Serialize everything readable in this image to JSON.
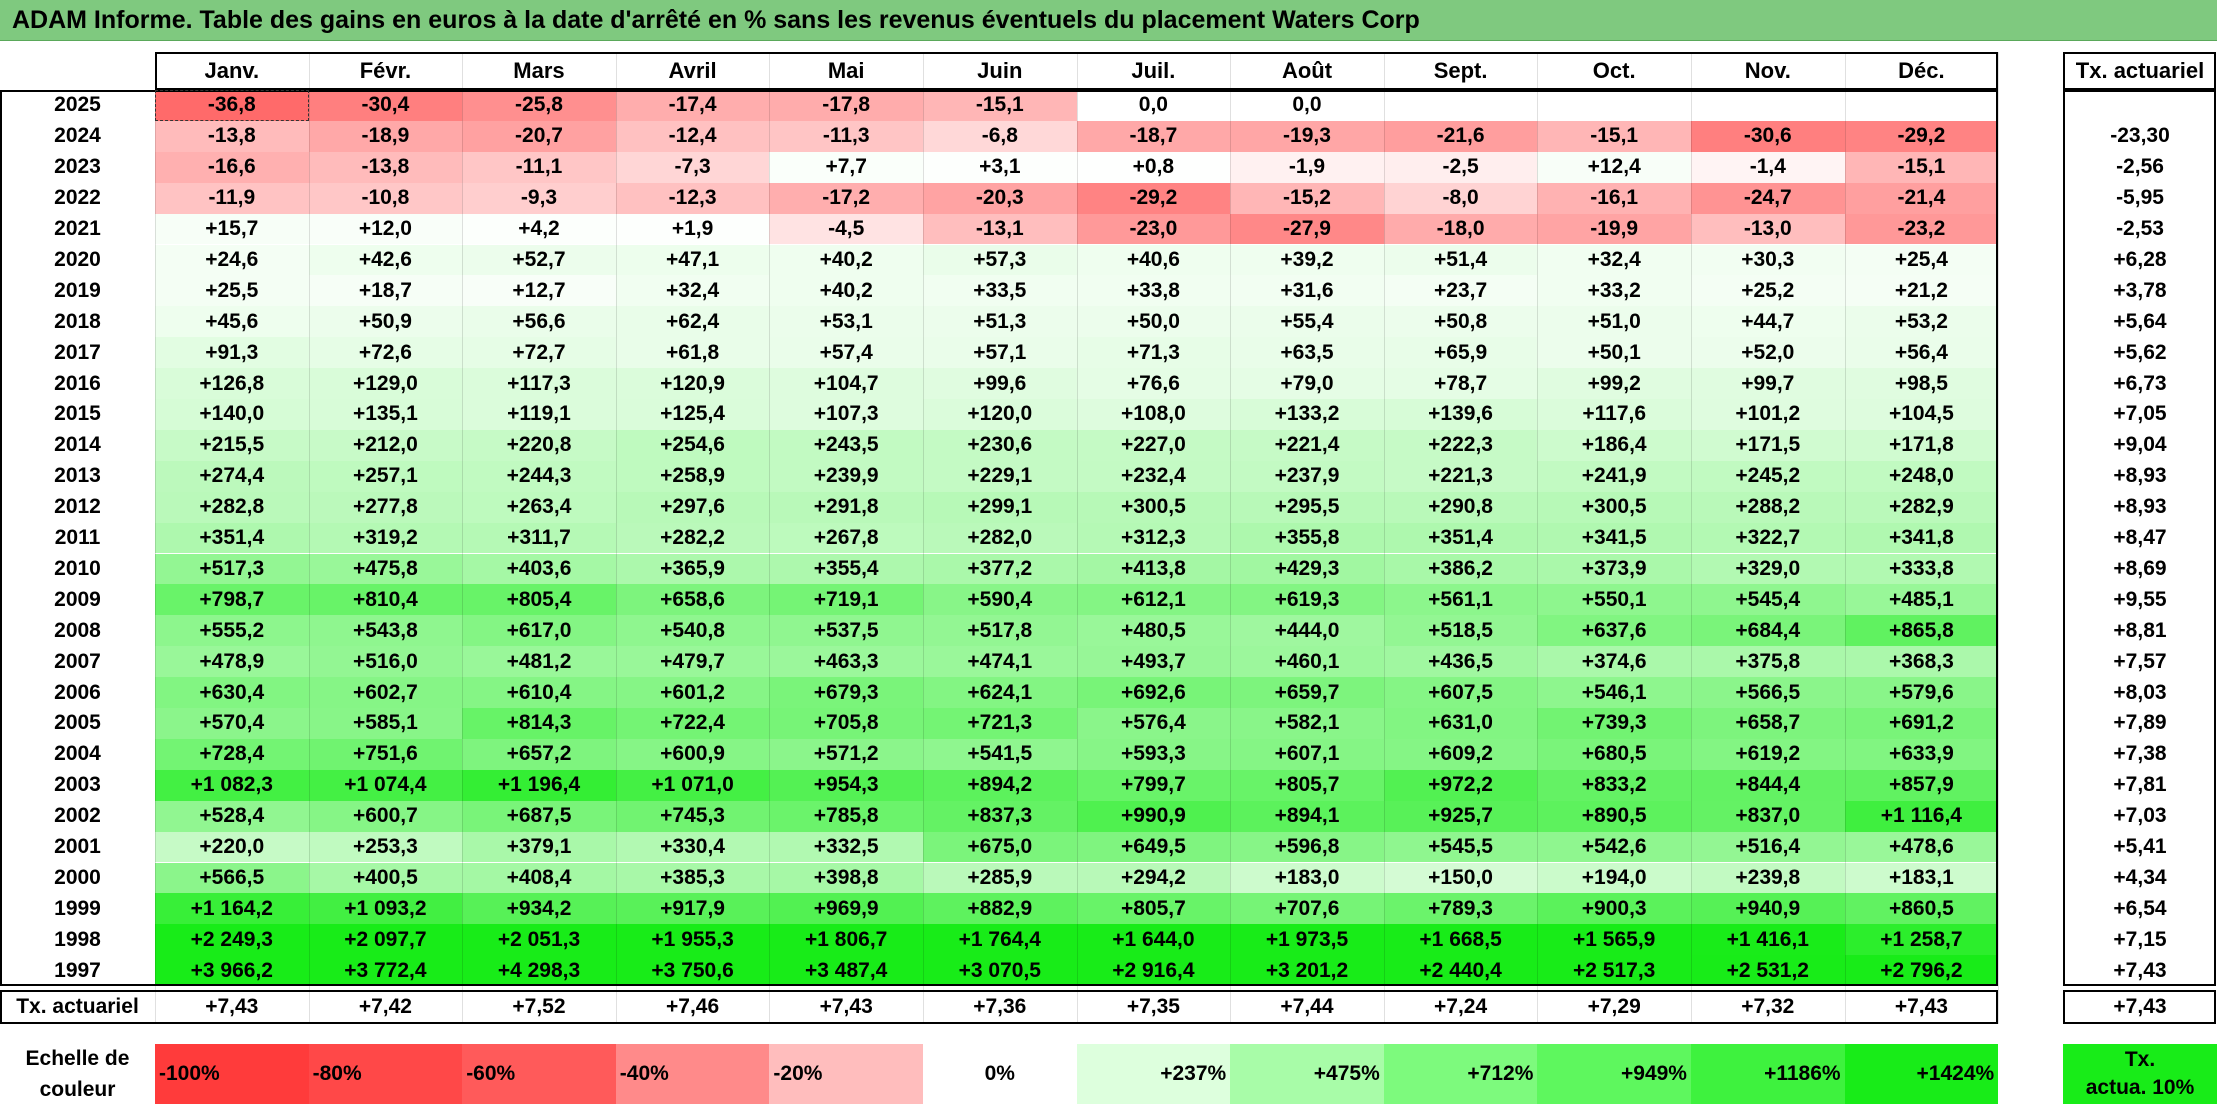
{
  "title": "ADAM Informe. Table des gains en euros à la date d'arrêté en % sans les revenus éventuels du placement Waters Corp",
  "months": [
    "Janv.",
    "Févr.",
    "Mars",
    "Avril",
    "Mai",
    "Juin",
    "Juil.",
    "Août",
    "Sept.",
    "Oct.",
    "Nov.",
    "Déc."
  ],
  "rate_header": "Tx. actuariel",
  "rows": [
    {
      "year": "2025",
      "values": [
        "-36,8",
        "-30,4",
        "-25,8",
        "-17,4",
        "-17,8",
        "-15,1",
        "0,0",
        "0,0",
        "",
        "",
        "",
        ""
      ],
      "rate": ""
    },
    {
      "year": "2024",
      "values": [
        "-13,8",
        "-18,9",
        "-20,7",
        "-12,4",
        "-11,3",
        "-6,8",
        "-18,7",
        "-19,3",
        "-21,6",
        "-15,1",
        "-30,6",
        "-29,2"
      ],
      "rate": "-23,30"
    },
    {
      "year": "2023",
      "values": [
        "-16,6",
        "-13,8",
        "-11,1",
        "-7,3",
        "+7,7",
        "+3,1",
        "+0,8",
        "-1,9",
        "-2,5",
        "+12,4",
        "-1,4",
        "-15,1"
      ],
      "rate": "-2,56"
    },
    {
      "year": "2022",
      "values": [
        "-11,9",
        "-10,8",
        "-9,3",
        "-12,3",
        "-17,2",
        "-20,3",
        "-29,2",
        "-15,2",
        "-8,0",
        "-16,1",
        "-24,7",
        "-21,4"
      ],
      "rate": "-5,95"
    },
    {
      "year": "2021",
      "values": [
        "+15,7",
        "+12,0",
        "+4,2",
        "+1,9",
        "-4,5",
        "-13,1",
        "-23,0",
        "-27,9",
        "-18,0",
        "-19,9",
        "-13,0",
        "-23,2"
      ],
      "rate": "-2,53"
    },
    {
      "year": "2020",
      "values": [
        "+24,6",
        "+42,6",
        "+52,7",
        "+47,1",
        "+40,2",
        "+57,3",
        "+40,6",
        "+39,2",
        "+51,4",
        "+32,4",
        "+30,3",
        "+25,4"
      ],
      "rate": "+6,28"
    },
    {
      "year": "2019",
      "values": [
        "+25,5",
        "+18,7",
        "+12,7",
        "+32,4",
        "+40,2",
        "+33,5",
        "+33,8",
        "+31,6",
        "+23,7",
        "+33,2",
        "+25,2",
        "+21,2"
      ],
      "rate": "+3,78"
    },
    {
      "year": "2018",
      "values": [
        "+45,6",
        "+50,9",
        "+56,6",
        "+62,4",
        "+53,1",
        "+51,3",
        "+50,0",
        "+55,4",
        "+50,8",
        "+51,0",
        "+44,7",
        "+53,2"
      ],
      "rate": "+5,64"
    },
    {
      "year": "2017",
      "values": [
        "+91,3",
        "+72,6",
        "+72,7",
        "+61,8",
        "+57,4",
        "+57,1",
        "+71,3",
        "+63,5",
        "+65,9",
        "+50,1",
        "+52,0",
        "+56,4"
      ],
      "rate": "+5,62"
    },
    {
      "year": "2016",
      "values": [
        "+126,8",
        "+129,0",
        "+117,3",
        "+120,9",
        "+104,7",
        "+99,6",
        "+76,6",
        "+79,0",
        "+78,7",
        "+99,2",
        "+99,7",
        "+98,5"
      ],
      "rate": "+6,73"
    },
    {
      "year": "2015",
      "values": [
        "+140,0",
        "+135,1",
        "+119,1",
        "+125,4",
        "+107,3",
        "+120,0",
        "+108,0",
        "+133,2",
        "+139,6",
        "+117,6",
        "+101,2",
        "+104,5"
      ],
      "rate": "+7,05"
    },
    {
      "year": "2014",
      "values": [
        "+215,5",
        "+212,0",
        "+220,8",
        "+254,6",
        "+243,5",
        "+230,6",
        "+227,0",
        "+221,4",
        "+222,3",
        "+186,4",
        "+171,5",
        "+171,8"
      ],
      "rate": "+9,04"
    },
    {
      "year": "2013",
      "values": [
        "+274,4",
        "+257,1",
        "+244,3",
        "+258,9",
        "+239,9",
        "+229,1",
        "+232,4",
        "+237,9",
        "+221,3",
        "+241,9",
        "+245,2",
        "+248,0"
      ],
      "rate": "+8,93"
    },
    {
      "year": "2012",
      "values": [
        "+282,8",
        "+277,8",
        "+263,4",
        "+297,6",
        "+291,8",
        "+299,1",
        "+300,5",
        "+295,5",
        "+290,8",
        "+300,5",
        "+288,2",
        "+282,9"
      ],
      "rate": "+8,93"
    },
    {
      "year": "2011",
      "values": [
        "+351,4",
        "+319,2",
        "+311,7",
        "+282,2",
        "+267,8",
        "+282,0",
        "+312,3",
        "+355,8",
        "+351,4",
        "+341,5",
        "+322,7",
        "+341,8"
      ],
      "rate": "+8,47"
    },
    {
      "year": "2010",
      "values": [
        "+517,3",
        "+475,8",
        "+403,6",
        "+365,9",
        "+355,4",
        "+377,2",
        "+413,8",
        "+429,3",
        "+386,2",
        "+373,9",
        "+329,0",
        "+333,8"
      ],
      "rate": "+8,69"
    },
    {
      "year": "2009",
      "values": [
        "+798,7",
        "+810,4",
        "+805,4",
        "+658,6",
        "+719,1",
        "+590,4",
        "+612,1",
        "+619,3",
        "+561,1",
        "+550,1",
        "+545,4",
        "+485,1"
      ],
      "rate": "+9,55"
    },
    {
      "year": "2008",
      "values": [
        "+555,2",
        "+543,8",
        "+617,0",
        "+540,8",
        "+537,5",
        "+517,8",
        "+480,5",
        "+444,0",
        "+518,5",
        "+637,6",
        "+684,4",
        "+865,8"
      ],
      "rate": "+8,81"
    },
    {
      "year": "2007",
      "values": [
        "+478,9",
        "+516,0",
        "+481,2",
        "+479,7",
        "+463,3",
        "+474,1",
        "+493,7",
        "+460,1",
        "+436,5",
        "+374,6",
        "+375,8",
        "+368,3"
      ],
      "rate": "+7,57"
    },
    {
      "year": "2006",
      "values": [
        "+630,4",
        "+602,7",
        "+610,4",
        "+601,2",
        "+679,3",
        "+624,1",
        "+692,6",
        "+659,7",
        "+607,5",
        "+546,1",
        "+566,5",
        "+579,6"
      ],
      "rate": "+8,03"
    },
    {
      "year": "2005",
      "values": [
        "+570,4",
        "+585,1",
        "+814,3",
        "+722,4",
        "+705,8",
        "+721,3",
        "+576,4",
        "+582,1",
        "+631,0",
        "+739,3",
        "+658,7",
        "+691,2"
      ],
      "rate": "+7,89"
    },
    {
      "year": "2004",
      "values": [
        "+728,4",
        "+751,6",
        "+657,2",
        "+600,9",
        "+571,2",
        "+541,5",
        "+593,3",
        "+607,1",
        "+609,2",
        "+680,5",
        "+619,2",
        "+633,9"
      ],
      "rate": "+7,38"
    },
    {
      "year": "2003",
      "values": [
        "+1 082,3",
        "+1 074,4",
        "+1 196,4",
        "+1 071,0",
        "+954,3",
        "+894,2",
        "+799,7",
        "+805,7",
        "+972,2",
        "+833,2",
        "+844,4",
        "+857,9"
      ],
      "rate": "+7,81"
    },
    {
      "year": "2002",
      "values": [
        "+528,4",
        "+600,7",
        "+687,5",
        "+745,3",
        "+785,8",
        "+837,3",
        "+990,9",
        "+894,1",
        "+925,7",
        "+890,5",
        "+837,0",
        "+1 116,4"
      ],
      "rate": "+7,03"
    },
    {
      "year": "2001",
      "values": [
        "+220,0",
        "+253,3",
        "+379,1",
        "+330,4",
        "+332,5",
        "+675,0",
        "+649,5",
        "+596,8",
        "+545,5",
        "+542,6",
        "+516,4",
        "+478,6"
      ],
      "rate": "+5,41"
    },
    {
      "year": "2000",
      "values": [
        "+566,5",
        "+400,5",
        "+408,4",
        "+385,3",
        "+398,8",
        "+285,9",
        "+294,2",
        "+183,0",
        "+150,0",
        "+194,0",
        "+239,8",
        "+183,1"
      ],
      "rate": "+4,34"
    },
    {
      "year": "1999",
      "values": [
        "+1 164,2",
        "+1 093,2",
        "+934,2",
        "+917,9",
        "+969,9",
        "+882,9",
        "+805,7",
        "+707,6",
        "+789,3",
        "+900,3",
        "+940,9",
        "+860,5"
      ],
      "rate": "+6,54"
    },
    {
      "year": "1998",
      "values": [
        "+2 249,3",
        "+2 097,7",
        "+2 051,3",
        "+1 955,3",
        "+1 806,7",
        "+1 764,4",
        "+1 644,0",
        "+1 973,5",
        "+1 668,5",
        "+1 565,9",
        "+1 416,1",
        "+1 258,7"
      ],
      "rate": "+7,15"
    },
    {
      "year": "1997",
      "values": [
        "+3 966,2",
        "+3 772,4",
        "+4 298,3",
        "+3 750,6",
        "+3 487,4",
        "+3 070,5",
        "+2 916,4",
        "+3 201,2",
        "+2 440,4",
        "+2 517,3",
        "+2 531,2",
        "+2 796,2"
      ],
      "rate": "+7,43"
    }
  ],
  "footer": {
    "label": "Tx. actuariel",
    "values": [
      "+7,43",
      "+7,42",
      "+7,52",
      "+7,46",
      "+7,43",
      "+7,36",
      "+7,35",
      "+7,44",
      "+7,24",
      "+7,29",
      "+7,32",
      "+7,43"
    ],
    "rate": "+7,43"
  },
  "legend": {
    "label_line1": "Echelle de",
    "label_line2": "couleur",
    "scale": [
      {
        "text": "-100%",
        "color": "#ff3b3b",
        "align": "left"
      },
      {
        "text": "-80%",
        "color": "#ff4848",
        "align": "left"
      },
      {
        "text": "-60%",
        "color": "#ff5a5a",
        "align": "left"
      },
      {
        "text": "-40%",
        "color": "#ff8a8a",
        "align": "left"
      },
      {
        "text": "-20%",
        "color": "#ffbdbd",
        "align": "left"
      },
      {
        "text": "0%",
        "color": "#ffffff",
        "align": "center"
      },
      {
        "text": "+237%",
        "color": "#ddffdd",
        "align": "right"
      },
      {
        "text": "+475%",
        "color": "#a8fca8",
        "align": "right"
      },
      {
        "text": "+712%",
        "color": "#7dfa7d",
        "align": "right"
      },
      {
        "text": "+949%",
        "color": "#5ef75e",
        "align": "right"
      },
      {
        "text": "+1186%",
        "color": "#3ef23e",
        "align": "right"
      },
      {
        "text": "+1424%",
        "color": "#18ec18",
        "align": "right"
      }
    ],
    "rate_line1": "Tx.",
    "rate_line2": "actua. 10%",
    "rate_color": "#18ec18"
  },
  "colors": {
    "title_bg": "#7fc97f",
    "neg_strong": "#ff3b3b",
    "pos_strong": "#18ec18",
    "neutral": "#ffffff"
  }
}
